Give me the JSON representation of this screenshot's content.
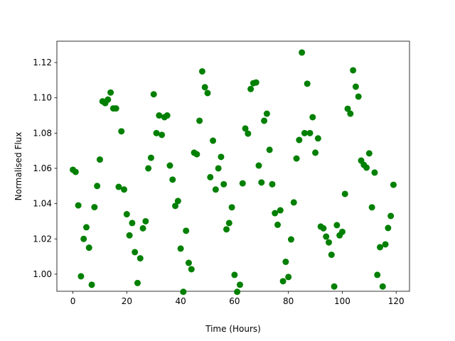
{
  "chart_data": {
    "type": "scatter",
    "x_label": "Time (Hours)",
    "y_label": "Normalised Flux",
    "x": [
      0,
      1,
      2,
      3,
      4,
      5,
      6,
      7,
      8,
      9,
      10,
      11,
      12,
      13,
      14,
      15,
      16,
      17,
      18,
      19,
      20,
      21,
      22,
      23,
      24,
      25,
      26,
      27,
      28,
      29,
      30,
      31,
      32,
      33,
      34,
      35,
      36,
      37,
      38,
      39,
      40,
      41,
      42,
      43,
      44,
      45,
      46,
      47,
      48,
      49,
      50,
      51,
      52,
      53,
      54,
      55,
      56,
      57,
      58,
      59,
      60,
      61,
      62,
      63,
      64,
      65,
      66,
      67,
      68,
      69,
      70,
      71,
      72,
      73,
      74,
      75,
      76,
      77,
      78,
      79,
      80,
      81,
      82,
      83,
      84,
      85,
      86,
      87,
      88,
      89,
      90,
      91,
      92,
      93,
      94,
      95,
      96,
      97,
      98,
      99,
      100,
      101,
      102,
      103,
      104,
      105,
      106,
      107,
      108,
      109,
      110,
      111,
      112,
      113,
      114,
      115,
      116,
      117,
      118,
      119
    ],
    "series": [
      {
        "name": "flux",
        "color": "#008000",
        "values": [
          1.0592,
          1.058,
          1.039,
          0.9988,
          1.02,
          1.0266,
          1.015,
          0.994,
          1.038,
          1.05,
          1.065,
          1.098,
          1.097,
          1.099,
          1.103,
          1.094,
          1.094,
          1.0495,
          1.081,
          1.048,
          1.034,
          1.022,
          1.029,
          1.0125,
          0.995,
          1.009,
          1.026,
          1.03,
          1.06,
          1.066,
          1.102,
          1.08,
          1.09,
          1.079,
          1.089,
          1.09,
          1.0616,
          1.0536,
          1.0387,
          1.0415,
          1.0145,
          0.99,
          1.0246,
          1.0064,
          1.0028,
          1.0689,
          1.068,
          1.087,
          1.115,
          1.106,
          1.1027,
          1.055,
          1.0757,
          1.048,
          1.06,
          1.0665,
          1.051,
          1.0254,
          1.029,
          1.0379,
          0.9996,
          0.99,
          0.994,
          1.0515,
          1.0826,
          1.0797,
          1.105,
          1.1083,
          1.1087,
          1.0616,
          1.052,
          1.087,
          1.091,
          1.0705,
          1.051,
          1.0346,
          1.028,
          1.0362,
          0.996,
          1.007,
          0.9984,
          1.0197,
          1.0407,
          1.0656,
          1.0761,
          1.1257,
          1.08,
          1.108,
          1.08,
          1.089,
          1.0689,
          1.077,
          1.027,
          1.026,
          1.0213,
          1.018,
          1.011,
          0.993,
          1.0278,
          1.022,
          1.024,
          1.0455,
          1.0938,
          1.091,
          1.1156,
          1.1063,
          1.1007,
          1.0644,
          1.062,
          1.0604,
          1.0685,
          1.0379,
          1.0576,
          0.9996,
          1.0153,
          0.993,
          1.0169,
          1.0262,
          1.033,
          1.0507
        ]
      }
    ],
    "xlim": [
      -5.95,
      124.95
    ],
    "ylim": [
      0.9903,
      1.1321
    ],
    "xticks": [
      0,
      20,
      40,
      60,
      80,
      100,
      120
    ],
    "yticks": [
      {
        "value": 1,
        "label": "1.00"
      },
      1.02,
      1.04,
      1.06,
      1.08,
      {
        "value": 1.1,
        "label": "1.10"
      },
      1.12
    ]
  }
}
